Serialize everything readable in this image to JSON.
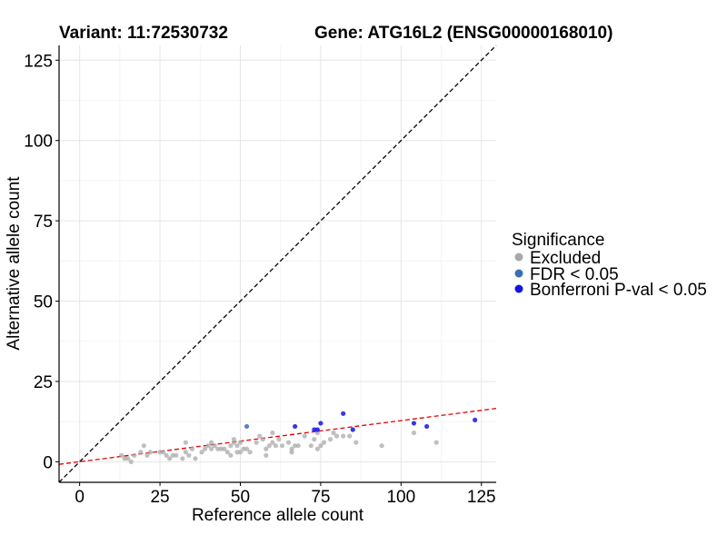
{
  "chart_data": {
    "type": "scatter",
    "title_left": "Variant: 11:72530732",
    "title_right": "Gene: ATG16L2 (ENSG00000168010)",
    "xlabel": "Reference allele count",
    "ylabel": "Alternative allele count",
    "xlim": [
      -6.4,
      129.6
    ],
    "ylim": [
      -6.4,
      129.6
    ],
    "xticks": [
      0,
      25,
      50,
      75,
      100,
      125
    ],
    "yticks": [
      0,
      25,
      50,
      75,
      100,
      125
    ],
    "grid": true,
    "legend": {
      "title": "Significance",
      "position": "right",
      "entries": [
        {
          "key": "excluded",
          "label": "Excluded",
          "color": "#a9a9a9"
        },
        {
          "key": "fdr",
          "label": "FDR < 0.05",
          "color": "#3a6fb0"
        },
        {
          "key": "bonf",
          "label": "Bonferroni P-val < 0.05",
          "color": "#1414e6"
        }
      ]
    },
    "reference_lines": [
      {
        "type": "identity",
        "style": "dashed",
        "color": "#000000",
        "from": [
          -6.4,
          -6.4
        ],
        "to": [
          129.6,
          129.6
        ]
      },
      {
        "type": "fit",
        "style": "dashed",
        "color": "#e60000",
        "from": [
          -6.4,
          -0.8
        ],
        "to": [
          129.6,
          16.6
        ]
      }
    ],
    "series": [
      {
        "key": "excluded",
        "color": "#a9a9a9",
        "points": [
          [
            13,
            2
          ],
          [
            14,
            1
          ],
          [
            15,
            1
          ],
          [
            16,
            0
          ],
          [
            17,
            2
          ],
          [
            19,
            3
          ],
          [
            20,
            5
          ],
          [
            21,
            2
          ],
          [
            22,
            3
          ],
          [
            25,
            3
          ],
          [
            26,
            3
          ],
          [
            27,
            2
          ],
          [
            28,
            1
          ],
          [
            29,
            2
          ],
          [
            30,
            2
          ],
          [
            32,
            1
          ],
          [
            33,
            6
          ],
          [
            33,
            3
          ],
          [
            34,
            2
          ],
          [
            35,
            4
          ],
          [
            36,
            1
          ],
          [
            38,
            3
          ],
          [
            39,
            4
          ],
          [
            40,
            5
          ],
          [
            41,
            6
          ],
          [
            41,
            4
          ],
          [
            42,
            5
          ],
          [
            43,
            4
          ],
          [
            44,
            4
          ],
          [
            45,
            4
          ],
          [
            46,
            3
          ],
          [
            47,
            5
          ],
          [
            47,
            2
          ],
          [
            48,
            7
          ],
          [
            48,
            6
          ],
          [
            49,
            3
          ],
          [
            49,
            5
          ],
          [
            50,
            6
          ],
          [
            50,
            3
          ],
          [
            51,
            4
          ],
          [
            52,
            4
          ],
          [
            53,
            3
          ],
          [
            55,
            6
          ],
          [
            56,
            8
          ],
          [
            57,
            7
          ],
          [
            58,
            4
          ],
          [
            58,
            2
          ],
          [
            59,
            5
          ],
          [
            60,
            9
          ],
          [
            60,
            6
          ],
          [
            61,
            5
          ],
          [
            62,
            7
          ],
          [
            63,
            5
          ],
          [
            65,
            6
          ],
          [
            66,
            4
          ],
          [
            66,
            3
          ],
          [
            67,
            5
          ],
          [
            68,
            5
          ],
          [
            70,
            8
          ],
          [
            72,
            5
          ],
          [
            73,
            7
          ],
          [
            74,
            9
          ],
          [
            74,
            4
          ],
          [
            75,
            5
          ],
          [
            76,
            6
          ],
          [
            78,
            7
          ],
          [
            79,
            9
          ],
          [
            80,
            8
          ],
          [
            82,
            8
          ],
          [
            84,
            8
          ],
          [
            86,
            6
          ],
          [
            94,
            5
          ],
          [
            104,
            9
          ],
          [
            111,
            6
          ]
        ]
      },
      {
        "key": "fdr",
        "color": "#3a6fb0",
        "points": [
          [
            52,
            11
          ]
        ]
      },
      {
        "key": "bonf",
        "color": "#1414e6",
        "points": [
          [
            67,
            11
          ],
          [
            73,
            10
          ],
          [
            74,
            10
          ],
          [
            75,
            12
          ],
          [
            82,
            15
          ],
          [
            85,
            10
          ],
          [
            104,
            12
          ],
          [
            108,
            11
          ],
          [
            123,
            13
          ]
        ]
      }
    ]
  }
}
